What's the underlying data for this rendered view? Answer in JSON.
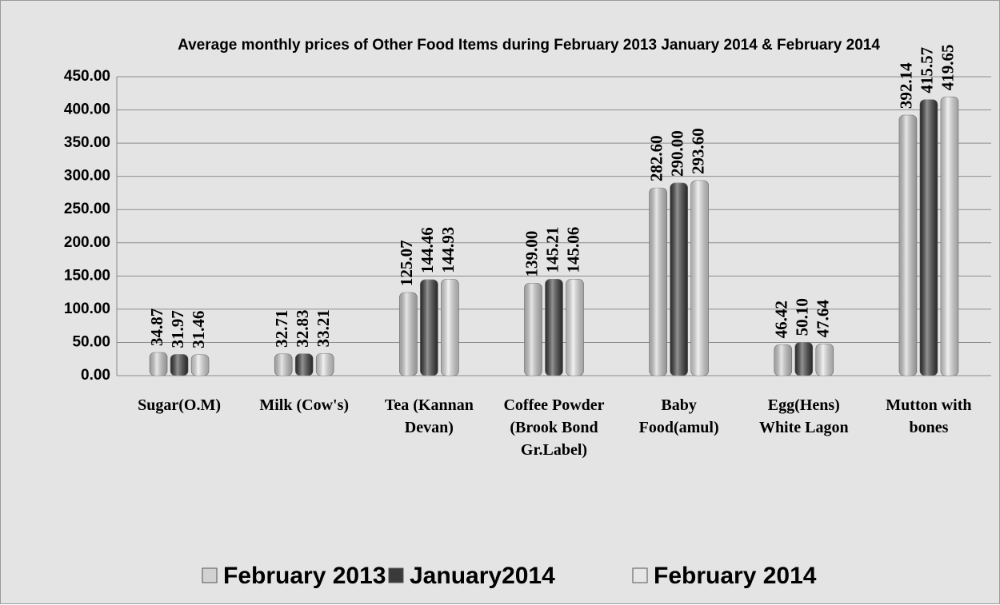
{
  "chart_data": {
    "type": "bar",
    "title": "Average monthly prices of Other Food Items during  February  2013 January 2014 & February 2014",
    "categories": [
      "Sugar(O.M)",
      "Milk (Cow's)",
      "Tea (Kannan Devan)",
      "Coffee Powder (Brook Bond Gr.Label)",
      "Baby Food(amul)",
      "Egg(Hens) White Lagon",
      "Mutton with bones"
    ],
    "series": [
      {
        "name": "February 2013",
        "color": "#d2d2d2",
        "values": [
          34.87,
          32.71,
          125.07,
          139.0,
          282.6,
          46.42,
          392.14
        ],
        "value_labels": [
          "34.87",
          "32.71",
          "125.07",
          "139.00",
          "282.60",
          "46.42",
          "392.14"
        ]
      },
      {
        "name": "January2014",
        "color": "#3a3a3a",
        "values": [
          31.97,
          32.83,
          144.46,
          145.21,
          290.0,
          50.1,
          415.57
        ],
        "value_labels": [
          "31.97",
          "32.83",
          "144.46",
          "145.21",
          "290.00",
          "50.10",
          "415.57"
        ]
      },
      {
        "name": "February 2014",
        "color": "#e6e6e6",
        "values": [
          31.46,
          33.21,
          144.93,
          145.06,
          293.6,
          47.64,
          419.65
        ],
        "value_labels": [
          "31.46",
          "33.21",
          "144.93",
          "145.06",
          "293.60",
          "47.64",
          "419.65"
        ]
      }
    ],
    "ylim": [
      0,
      450
    ],
    "yticks": [
      {
        "value": 0,
        "label": "0.00"
      },
      {
        "value": 50,
        "label": "50.00"
      },
      {
        "value": 100,
        "label": "100.00"
      },
      {
        "value": 150,
        "label": "150.00"
      },
      {
        "value": 200,
        "label": "200.00"
      },
      {
        "value": 250,
        "label": "250.00"
      },
      {
        "value": 300,
        "label": "300.00"
      },
      {
        "value": 350,
        "label": "350.00"
      },
      {
        "value": 400,
        "label": "400.00"
      },
      {
        "value": 450,
        "label": "450.00"
      }
    ],
    "grid": true,
    "legend": "bottom"
  }
}
